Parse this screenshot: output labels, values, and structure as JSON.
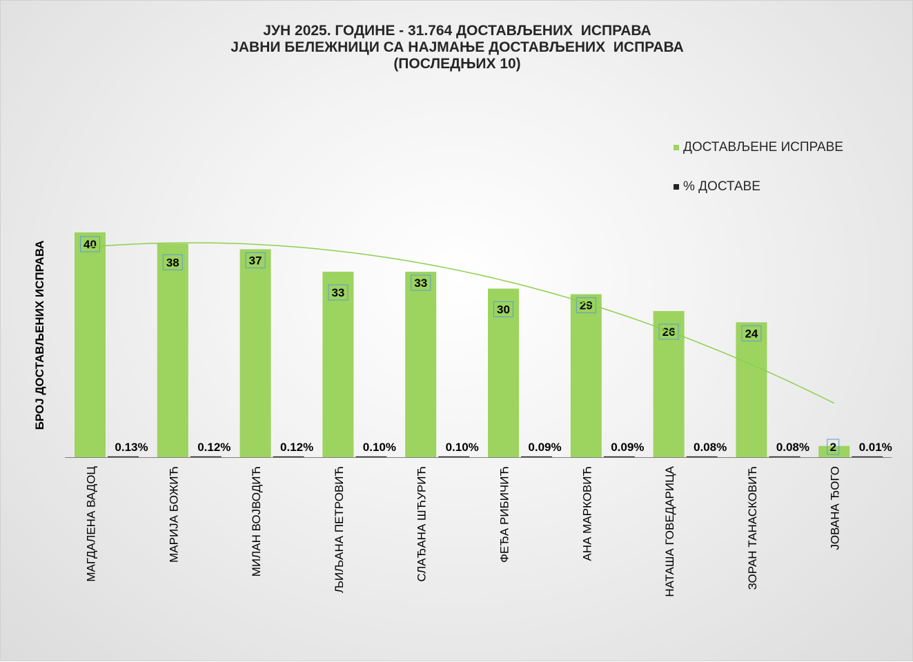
{
  "chart_data": {
    "type": "bar",
    "title_lines": [
      "ЈУН 2025. ГОДИНЕ - 31.764 ДОСТАВЉЕНИХ  ИСПРАВА",
      "ЈАВНИ БЕЛЕЖНИЦИ СА НАЈМАЊЕ ДОСТАВЉЕНИХ  ИСПРАВА",
      "(ПОСЛЕДЊИХ 10)"
    ],
    "ylabel": "БРОЈ ДОСТАВЉЕНИХ ИСПРАВА",
    "xlabel": "",
    "categories": [
      "МАГДАЛЕНА ВАДОЦ",
      "МАРИЈА БОЖИЋ",
      "МИЛАН ВОЈВОДИЋ",
      "ЉИЉАНА ПЕТРОВИЋ",
      "СЛАЂАНА ШЋУРИЋ",
      "ФЕЂА РИБИЧИЋ",
      "АНА МАРКОВИЋ",
      "НАТАША ГОВЕДАРИЦА",
      "ЗОРАН ТАНАСКОВИЋ",
      "ЈОВАНА ЂОГО"
    ],
    "series": [
      {
        "name": "ДОСТАВЉЕНЕ  ИСПРАВЕ",
        "color": "#9dd35f",
        "values": [
          40,
          38,
          37,
          33,
          33,
          30,
          29,
          26,
          24,
          2
        ],
        "labels": [
          "40",
          "38",
          "37",
          "33",
          "33",
          "30",
          "29",
          "26",
          "24",
          "2"
        ]
      },
      {
        "name": "% ДОСТАВЕ",
        "color": "#262626",
        "values": [
          0.13,
          0.12,
          0.12,
          0.1,
          0.1,
          0.09,
          0.09,
          0.08,
          0.08,
          0.01
        ],
        "labels": [
          "0.13%",
          "0.12%",
          "0.12%",
          "0.10%",
          "0.10%",
          "0.09%",
          "0.09%",
          "0.08%",
          "0.08%",
          "0.01%"
        ]
      }
    ],
    "trendline": {
      "type": "polynomial",
      "series": "ДОСТАВЉЕНЕ  ИСПРАВЕ",
      "color": "#8ccf4d"
    },
    "ylim": [
      0,
      40
    ],
    "grid": false,
    "legend_position": "top-right"
  }
}
